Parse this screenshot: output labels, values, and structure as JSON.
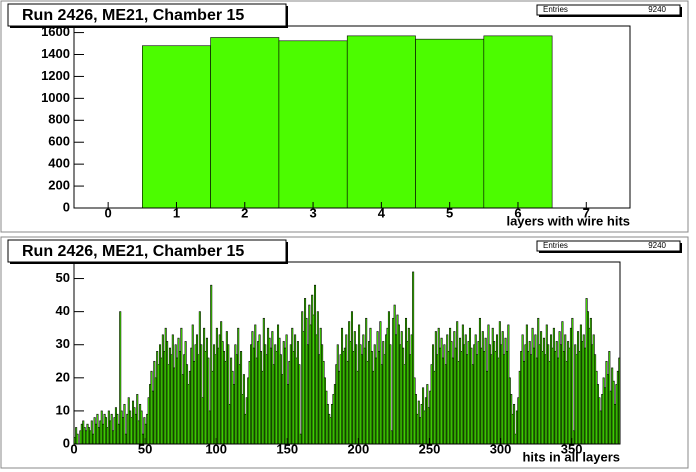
{
  "chart_data": [
    {
      "type": "histogram",
      "title": "Run 2426, ME21, Chamber 15",
      "stats": {
        "label": "Entries",
        "value": 9240
      },
      "x_label": "layers with wire hits",
      "bins": [
        0.5,
        1.5,
        2.5,
        3.5,
        4.5,
        5.5,
        6.5
      ],
      "values": [
        1480,
        1555,
        1525,
        1570,
        1540,
        1570
      ],
      "color": "#4cfc00",
      "xlim": [
        -0.5,
        7.64
      ],
      "xticks": [
        0,
        1,
        2,
        3,
        4,
        5,
        6,
        7
      ],
      "ylim": [
        0,
        1660
      ],
      "yticks": [
        0,
        200,
        400,
        600,
        800,
        1000,
        1200,
        1400,
        1600
      ]
    },
    {
      "type": "histogram",
      "title": "Run 2426, ME21, Chamber 15",
      "stats": {
        "label": "Entries",
        "value": 9240
      },
      "x_label": "hits in all layers",
      "bins": [
        0,
        1,
        2,
        3,
        4,
        5,
        6,
        7,
        8,
        9,
        10,
        11,
        12,
        13,
        14,
        15,
        16,
        17,
        18,
        19,
        20,
        21,
        22,
        23,
        24,
        25,
        26,
        27,
        28,
        29,
        30,
        31,
        32,
        33,
        34,
        35,
        36,
        37,
        38,
        39,
        40,
        41,
        42,
        43,
        44,
        45,
        46,
        47,
        48,
        49,
        50,
        51,
        52,
        53,
        54,
        55,
        56,
        57,
        58,
        59,
        60,
        61,
        62,
        63,
        64,
        65,
        66,
        67,
        68,
        69,
        70,
        71,
        72,
        73,
        74,
        75,
        76,
        77,
        78,
        79,
        80,
        81,
        82,
        83,
        84,
        85,
        86,
        87,
        88,
        89,
        90,
        91,
        92,
        93,
        94,
        95,
        96,
        97,
        98,
        99,
        100,
        101,
        102,
        103,
        104,
        105,
        106,
        107,
        108,
        109,
        110,
        111,
        112,
        113,
        114,
        115,
        116,
        117,
        118,
        119,
        120,
        121,
        122,
        123,
        124,
        125,
        126,
        127,
        128,
        129,
        130,
        131,
        132,
        133,
        134,
        135,
        136,
        137,
        138,
        139,
        140,
        141,
        142,
        143,
        144,
        145,
        146,
        147,
        148,
        149,
        150,
        151,
        152,
        153,
        154,
        155,
        156,
        157,
        158,
        159,
        160,
        161,
        162,
        163,
        164,
        165,
        166,
        167,
        168,
        169,
        170,
        171,
        172,
        173,
        174,
        175,
        176,
        177,
        178,
        179,
        180,
        181,
        182,
        183,
        184,
        185,
        186,
        187,
        188,
        189,
        190,
        191,
        192,
        193,
        194,
        195,
        196,
        197,
        198,
        199,
        200,
        201,
        202,
        203,
        204,
        205,
        206,
        207,
        208,
        209,
        210,
        211,
        212,
        213,
        214,
        215,
        216,
        217,
        218,
        219,
        220,
        221,
        222,
        223,
        224,
        225,
        226,
        227,
        228,
        229,
        230,
        231,
        232,
        233,
        234,
        235,
        236,
        237,
        238,
        239,
        240,
        241,
        242,
        243,
        244,
        245,
        246,
        247,
        248,
        249,
        250,
        251,
        252,
        253,
        254,
        255,
        256,
        257,
        258,
        259,
        260,
        261,
        262,
        263,
        264,
        265,
        266,
        267,
        268,
        269,
        270,
        271,
        272,
        273,
        274,
        275,
        276,
        277,
        278,
        279,
        280,
        281,
        282,
        283,
        284,
        285,
        286,
        287,
        288,
        289,
        290,
        291,
        292,
        293,
        294,
        295,
        296,
        297,
        298,
        299,
        300,
        301,
        302,
        303,
        304,
        305,
        306,
        307,
        308,
        309,
        310,
        311,
        312,
        313,
        314,
        315,
        316,
        317,
        318,
        319,
        320,
        321,
        322,
        323,
        324,
        325,
        326,
        327,
        328,
        329,
        330,
        331,
        332,
        333,
        334,
        335,
        336,
        337,
        338,
        339,
        340,
        341,
        342,
        343,
        344,
        345,
        346,
        347,
        348,
        349,
        350,
        351,
        352,
        353,
        354,
        355,
        356,
        357,
        358,
        359,
        360,
        361,
        362,
        363,
        364,
        365,
        366,
        367,
        368,
        369,
        370,
        371,
        372,
        373,
        374,
        375,
        376,
        377,
        378,
        379,
        380,
        381,
        382,
        383,
        384
      ],
      "values": [
        2,
        5,
        3,
        0,
        4,
        6,
        7,
        5,
        4,
        6,
        5,
        4,
        7,
        3,
        8,
        6,
        9,
        5,
        7,
        10,
        6,
        9,
        8,
        5,
        10,
        7,
        9,
        4,
        8,
        11,
        9,
        6,
        40,
        10,
        8,
        12,
        3,
        9,
        14,
        10,
        8,
        13,
        11,
        9,
        15,
        7,
        12,
        10,
        3,
        8,
        6,
        9,
        14,
        18,
        22,
        16,
        25,
        20,
        28,
        24,
        30,
        26,
        33,
        28,
        35,
        31,
        24,
        29,
        27,
        33,
        23,
        30,
        26,
        32,
        28,
        35,
        21,
        27,
        31,
        24,
        18,
        22,
        29,
        36,
        25,
        30,
        33,
        27,
        40,
        30,
        14,
        35,
        28,
        32,
        26,
        10,
        48,
        22,
        30,
        27,
        35,
        29,
        33,
        37,
        31,
        28,
        25,
        34,
        30,
        12,
        26,
        22,
        18,
        30,
        27,
        35,
        24,
        28,
        15,
        21,
        9,
        14,
        20,
        25,
        30,
        34,
        29,
        36,
        26,
        31,
        33,
        28,
        22,
        38,
        30,
        27,
        35,
        32,
        29,
        34,
        24,
        30,
        28,
        36,
        32,
        27,
        21,
        31,
        29,
        33,
        18,
        25,
        30,
        35,
        28,
        33,
        26,
        31,
        24,
        3,
        40,
        34,
        44,
        38,
        30,
        42,
        36,
        45,
        39,
        48,
        33,
        40,
        27,
        35,
        30,
        25,
        20,
        16,
        12,
        9,
        8,
        12,
        15,
        18,
        24,
        30,
        22,
        27,
        35,
        28,
        29,
        33,
        25,
        37,
        31,
        40,
        28,
        34,
        30,
        22,
        36,
        30,
        27,
        33,
        29,
        38,
        25,
        31,
        35,
        28,
        22,
        30,
        26,
        34,
        28,
        37,
        24,
        31,
        27,
        33,
        35,
        40,
        30,
        4,
        38,
        42,
        33,
        39,
        36,
        30,
        34,
        29,
        24,
        38,
        31,
        35,
        27,
        33,
        52,
        20,
        15,
        9,
        13,
        8,
        12,
        17,
        10,
        14,
        18,
        11,
        16,
        24,
        30,
        22,
        34,
        27,
        35,
        29,
        32,
        26,
        30,
        24,
        33,
        28,
        35,
        31,
        26,
        34,
        29,
        37,
        25,
        32,
        28,
        36,
        30,
        33,
        27,
        31,
        35,
        29,
        24,
        30,
        33,
        27,
        31,
        38,
        29,
        34,
        28,
        32,
        22,
        36,
        30,
        27,
        35,
        31,
        28,
        33,
        26,
        37,
        30,
        34,
        27,
        32,
        28,
        36,
        20,
        15,
        9,
        12,
        3,
        10,
        14,
        22,
        28,
        33,
        25,
        30,
        36,
        28,
        31,
        27,
        35,
        29,
        33,
        26,
        38,
        30,
        34,
        28,
        32,
        27,
        36,
        30,
        25,
        33,
        29,
        35,
        28,
        31,
        26,
        34,
        30,
        37,
        28,
        33,
        25,
        31,
        29,
        35,
        38,
        4,
        30,
        27,
        34,
        28,
        36,
        31,
        33,
        29,
        44,
        40,
        35,
        38,
        30,
        33,
        27,
        22,
        18,
        14,
        10,
        15,
        20,
        17,
        25,
        21,
        28,
        16,
        23,
        19,
        12,
        18,
        22,
        26
      ],
      "color": "#4cfc00",
      "xlim": [
        0,
        384
      ],
      "xticks": [
        0,
        50,
        100,
        150,
        200,
        250,
        300,
        350
      ],
      "ylim": [
        0,
        55
      ],
      "yticks": [
        0,
        10,
        20,
        30,
        40,
        50
      ]
    }
  ]
}
